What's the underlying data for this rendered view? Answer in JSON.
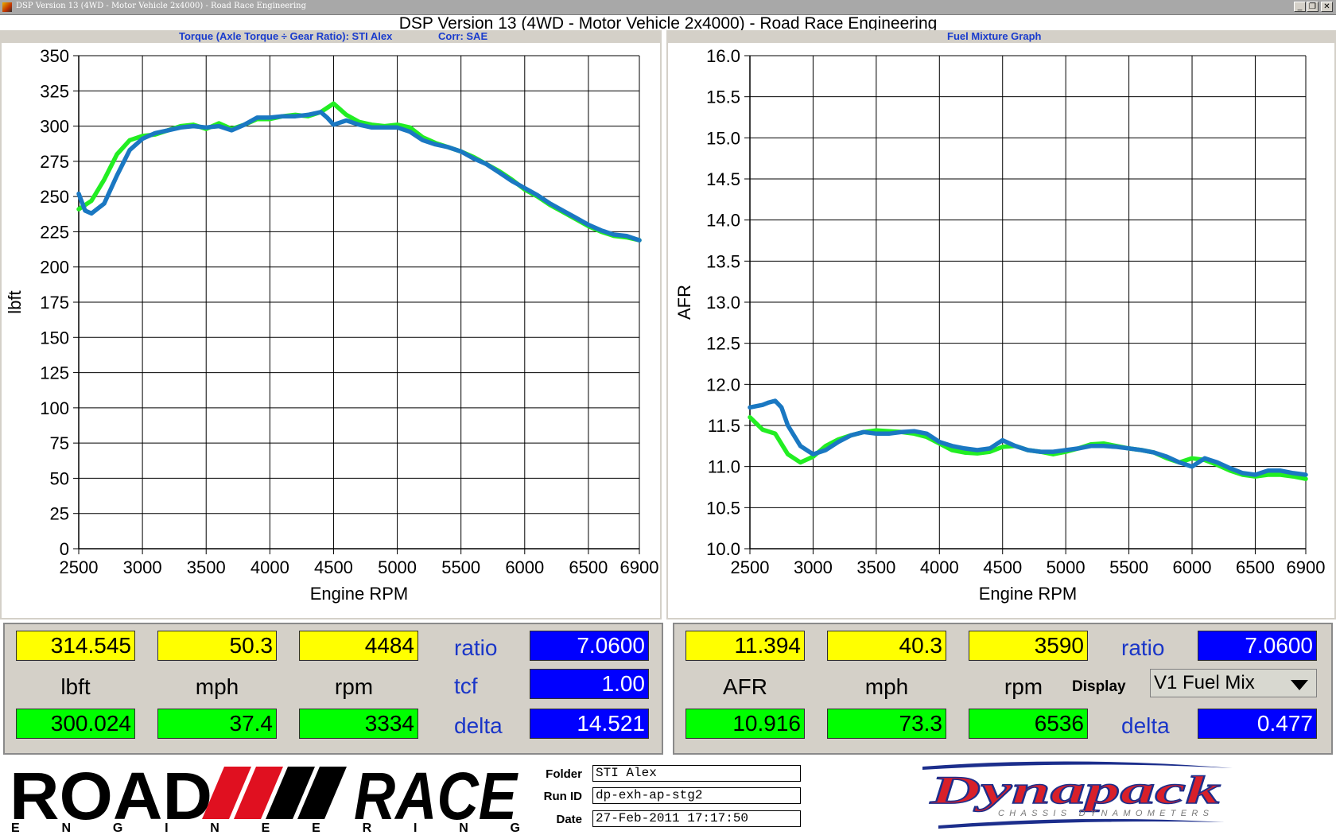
{
  "window": {
    "title_bar": "DSP Version 13 (4WD - Motor Vehicle 2x4000) - Road Race Engineering",
    "banner_title": "DSP Version 13 (4WD - Motor Vehicle 2x4000) - Road Race Engineering",
    "minimize": "_",
    "restore": "❐",
    "close": "✕"
  },
  "torque_chart": {
    "subtitle_left": "Torque (Axle Torque ÷ Gear Ratio): STI Alex",
    "subtitle_right": "Corr: SAE"
  },
  "afr_chart": {
    "subtitle": "Fuel Mixture Graph"
  },
  "chart_data": [
    {
      "type": "line",
      "title": "Torque (Axle Torque ÷ Gear Ratio): STI Alex",
      "xlabel": "Engine RPM",
      "ylabel": "lbft",
      "xlim": [
        2500,
        6900
      ],
      "ylim": [
        0,
        350
      ],
      "x_ticks": [
        "2500",
        "3000",
        "3500",
        "4000",
        "4500",
        "5000",
        "5500",
        "6000",
        "6500",
        "6900"
      ],
      "y_ticks": [
        "0",
        "25",
        "50",
        "75",
        "100",
        "125",
        "150",
        "175",
        "200",
        "225",
        "250",
        "275",
        "300",
        "325",
        "350"
      ],
      "grid": true,
      "colors": [
        "#22ee22",
        "#1a78c2"
      ],
      "series": [
        {
          "x": [
            2500,
            2600,
            2700,
            2800,
            2900,
            3000,
            3100,
            3200,
            3300,
            3400,
            3500,
            3600,
            3700,
            3800,
            3900,
            4000,
            4100,
            4200,
            4300,
            4400,
            4500,
            4600,
            4700,
            4800,
            4900,
            5000,
            5100,
            5200,
            5300,
            5400,
            5500,
            5600,
            5700,
            5800,
            5900,
            6000,
            6100,
            6200,
            6300,
            6400,
            6500,
            6600,
            6700,
            6800,
            6900
          ],
          "y": [
            241,
            247,
            262,
            280,
            290,
            293,
            294,
            297,
            300,
            301,
            298,
            302,
            298,
            301,
            305,
            305,
            307,
            308,
            307,
            310,
            316,
            308,
            303,
            301,
            300,
            301,
            299,
            292,
            288,
            285,
            282,
            278,
            273,
            268,
            262,
            255,
            250,
            244,
            239,
            234,
            229,
            225,
            222,
            221,
            219
          ]
        },
        {
          "x": [
            2500,
            2550,
            2600,
            2700,
            2800,
            2900,
            3000,
            3100,
            3200,
            3300,
            3400,
            3500,
            3600,
            3700,
            3800,
            3900,
            4000,
            4100,
            4200,
            4300,
            4400,
            4450,
            4500,
            4600,
            4700,
            4800,
            4900,
            5000,
            5100,
            5200,
            5300,
            5400,
            5500,
            5600,
            5700,
            5800,
            5900,
            6000,
            6100,
            6200,
            6300,
            6400,
            6500,
            6600,
            6700,
            6800,
            6900
          ],
          "y": [
            252,
            240,
            238,
            245,
            265,
            283,
            291,
            295,
            297,
            299,
            300,
            299,
            300,
            297,
            301,
            306,
            306,
            307,
            307,
            308,
            310,
            306,
            301,
            304,
            301,
            299,
            299,
            299,
            296,
            290,
            287,
            285,
            282,
            277,
            273,
            267,
            261,
            256,
            251,
            245,
            240,
            235,
            230,
            226,
            223,
            222,
            219
          ]
        }
      ]
    },
    {
      "type": "line",
      "title": "Fuel Mixture Graph",
      "xlabel": "Engine RPM",
      "ylabel": "AFR",
      "xlim": [
        2500,
        6900
      ],
      "ylim": [
        10.0,
        16.0
      ],
      "x_ticks": [
        "2500",
        "3000",
        "3500",
        "4000",
        "4500",
        "5000",
        "5500",
        "6000",
        "6500",
        "6900"
      ],
      "y_ticks": [
        "10.0",
        "10.5",
        "11.0",
        "11.5",
        "12.0",
        "12.5",
        "13.0",
        "13.5",
        "14.0",
        "14.5",
        "15.0",
        "15.5",
        "16.0"
      ],
      "grid": true,
      "colors": [
        "#22ee22",
        "#1a78c2"
      ],
      "series": [
        {
          "x": [
            2500,
            2600,
            2700,
            2800,
            2900,
            3000,
            3100,
            3200,
            3300,
            3400,
            3500,
            3600,
            3700,
            3800,
            3900,
            4000,
            4100,
            4200,
            4300,
            4400,
            4500,
            4600,
            4700,
            4800,
            4900,
            5000,
            5100,
            5200,
            5300,
            5400,
            5500,
            5600,
            5700,
            5800,
            5900,
            6000,
            6100,
            6200,
            6300,
            6400,
            6500,
            6600,
            6700,
            6800,
            6900
          ],
          "y": [
            11.6,
            11.45,
            11.4,
            11.15,
            11.05,
            11.12,
            11.25,
            11.33,
            11.38,
            11.42,
            11.44,
            11.43,
            11.42,
            11.4,
            11.36,
            11.28,
            11.2,
            11.17,
            11.16,
            11.18,
            11.24,
            11.25,
            11.2,
            11.18,
            11.15,
            11.18,
            11.22,
            11.27,
            11.28,
            11.25,
            11.22,
            11.2,
            11.17,
            11.1,
            11.05,
            11.1,
            11.08,
            11.02,
            10.95,
            10.9,
            10.88,
            10.9,
            10.9,
            10.88,
            10.85
          ]
        },
        {
          "x": [
            2500,
            2600,
            2650,
            2700,
            2750,
            2800,
            2900,
            3000,
            3100,
            3200,
            3300,
            3400,
            3500,
            3600,
            3700,
            3800,
            3900,
            4000,
            4100,
            4200,
            4300,
            4400,
            4500,
            4600,
            4700,
            4800,
            4900,
            5000,
            5100,
            5200,
            5300,
            5400,
            5500,
            5600,
            5700,
            5800,
            5900,
            6000,
            6100,
            6200,
            6300,
            6400,
            6500,
            6600,
            6700,
            6800,
            6900
          ],
          "y": [
            11.72,
            11.75,
            11.78,
            11.8,
            11.72,
            11.5,
            11.25,
            11.15,
            11.2,
            11.3,
            11.38,
            11.42,
            11.4,
            11.4,
            11.42,
            11.43,
            11.4,
            11.3,
            11.25,
            11.22,
            11.2,
            11.22,
            11.32,
            11.25,
            11.2,
            11.18,
            11.18,
            11.2,
            11.22,
            11.25,
            11.25,
            11.24,
            11.22,
            11.2,
            11.17,
            11.12,
            11.05,
            11.0,
            11.1,
            11.05,
            10.98,
            10.92,
            10.9,
            10.95,
            10.95,
            10.92,
            10.9
          ]
        }
      ]
    }
  ],
  "readouts_left": {
    "cursor_torque": "314.545",
    "cursor_mph": "50.3",
    "cursor_rpm": "4484",
    "unit_torque": "lbft",
    "unit_mph": "mph",
    "unit_rpm": "rpm",
    "ref_torque": "300.024",
    "ref_mph": "37.4",
    "ref_rpm": "3334",
    "ratio_label": "ratio",
    "ratio_value": "7.0600",
    "tcf_label": "tcf",
    "tcf_value": "1.00",
    "delta_label": "delta",
    "delta_value": "14.521"
  },
  "readouts_right": {
    "cursor_afr": "11.394",
    "cursor_mph": "40.3",
    "cursor_rpm": "3590",
    "unit_afr": "AFR",
    "unit_mph": "mph",
    "unit_rpm": "rpm",
    "ref_afr": "10.916",
    "ref_mph": "73.3",
    "ref_rpm": "6536",
    "ratio_label": "ratio",
    "ratio_value": "7.0600",
    "display_label": "Display",
    "display_select": "V1 Fuel Mix",
    "delta_label": "delta",
    "delta_value": "0.477"
  },
  "footer": {
    "logo_road": "ROAD",
    "logo_race": "RACE",
    "logo_engineering": "E N G I N E E R I N G",
    "folder_label": "Folder",
    "folder_value": "STI Alex",
    "runid_label": "Run ID",
    "runid_value": "dp-exh-ap-stg2",
    "date_label": "Date",
    "date_value": "27-Feb-2011 17:17:50",
    "dynapack_logo": "Dynapack",
    "dynapack_sub": "CHASSIS DYNAMOMETERS"
  }
}
